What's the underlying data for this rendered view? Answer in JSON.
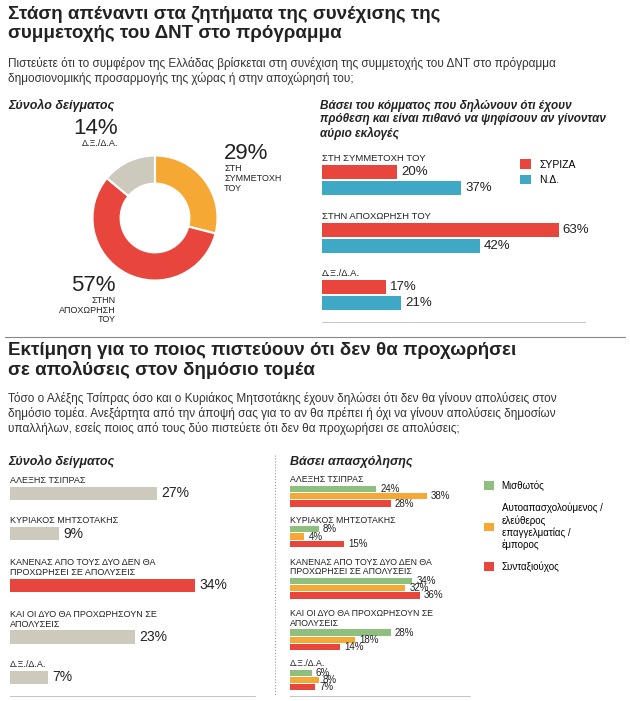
{
  "sections": [
    {
      "title": "Στάση απέναντι στα ζητήματα της συνέχισης της συμμετοχής του ΔΝΤ στο πρόγραμμα",
      "subtitle": "Πιστεύετε ότι το συμφέρον της Ελλάδας βρίσκεται στη συνέχιση της συμμετοχής του ΔΝΤ στο πρόγραμμα δημοσιονομικής προσαρμογής της χώρας ή στην αποχώρησή του;"
    },
    {
      "title": "Εκτίμηση για το ποιος πιστεύουν ότι δεν θα προχωρήσει σε απολύσεις στον δημόσιο τομέα",
      "subtitle": "Τόσο ο Αλέξης Τσίπρας όσο και ο Κυριάκος Μητσοτάκης έχουν δηλώσει ότι δεν θα γίνουν απολύσεις στον δημόσιο τομέα. Ανεξάρτητα από την άποψή σας για το αν θα πρέπει ή όχι να γίνουν απολύσεις δημοσίων υπαλλήλων, εσείς ποιος από τους δύο πιστεύετε ότι δεν θα προχωρήσει σε απολύσεις;"
    }
  ],
  "chart_data": [
    {
      "type": "pie",
      "title": "Σύνολο δείγματος",
      "categories": [
        "ΣΤΗ ΣΥΜΜΕΤΟΧΗ ΤΟΥ",
        "ΣΤΗΝ ΑΠΟΧΩΡΗΣΗ ΤΟΥ",
        "Δ.Ξ./Δ.Α."
      ],
      "values": [
        29,
        57,
        14
      ],
      "value_labels": [
        "29%",
        "57%",
        "14%"
      ],
      "colors": [
        "#f5a834",
        "#e8453c",
        "#cdc9bd"
      ],
      "data_labels": true
    },
    {
      "type": "bar",
      "orientation": "horizontal",
      "title": "Βάσει του κόμματος που δηλώνουν ότι έχουν πρόθεση και είναι πιθανό να ψηφίσουν αν γίνονταν αύριο εκλογές",
      "categories": [
        "ΣΤΗ ΣΥΜΜΕΤΟΧΗ ΤΟΥ",
        "ΣΤΗΝ ΑΠΟΧΩΡΗΣΗ ΤΟΥ",
        "Δ.Ξ./Δ.Α."
      ],
      "series": [
        {
          "name": "ΣΥΡΙΖΑ",
          "color": "#e8453c",
          "values": [
            20,
            63,
            17
          ],
          "value_labels": [
            "20%",
            "63%",
            "17%"
          ]
        },
        {
          "name": "Ν.Δ.",
          "color": "#3fa8c5",
          "values": [
            37,
            42,
            21
          ],
          "value_labels": [
            "37%",
            "42%",
            "21%"
          ]
        }
      ],
      "xlim": [
        0,
        70
      ],
      "tick_labels": false,
      "legend": "upper right",
      "data_labels": true
    },
    {
      "type": "bar",
      "orientation": "horizontal",
      "title": "Σύνολο δείγματος",
      "categories": [
        "ΑΛΕΞΗΣ ΤΣΙΠΡΑΣ",
        "ΚΥΡΙΑΚΟΣ ΜΗΤΣΟΤΑΚΗΣ",
        "ΚΑΝΕΝΑΣ ΑΠΟ ΤΟΥΣ ΔΥΟ ΔΕΝ ΘΑ ΠΡΟΧΩΡΗΣΕΙ ΣΕ ΑΠΟΛΥΣΕΙΣ",
        "ΚΑΙ ΟΙ ΔΥΟ ΘΑ ΠΡΟΧΩΡΗΣΟΥΝ ΣΕ ΑΠΟΛΥΣΕΙΣ",
        "Δ.Ξ./Δ.Α."
      ],
      "values": [
        27,
        9,
        34,
        23,
        7
      ],
      "value_labels": [
        "27%",
        "9%",
        "34%",
        "23%",
        "7%"
      ],
      "colors": [
        "#cdc9bd",
        "#cdc9bd",
        "#e8453c",
        "#cdc9bd",
        "#cdc9bd"
      ],
      "xlim": [
        0,
        45
      ],
      "tick_labels": false,
      "data_labels": true
    },
    {
      "type": "bar",
      "orientation": "horizontal",
      "title": "Βάσει απασχόλησης",
      "categories": [
        "ΑΛΕΞΗΣ ΤΣΙΠΡΑΣ",
        "ΚΥΡΙΑΚΟΣ ΜΗΤΣΟΤΑΚΗΣ",
        "ΚΑΝΕΝΑΣ ΑΠΟ ΤΟΥΣ ΔΥΟ ΔΕΝ ΘΑ ΠΡΟΧΩΡΗΣΕΙ ΣΕ ΑΠΟΛΥΣΕΙΣ",
        "ΚΑΙ ΟΙ ΔΥΟ ΘΑ ΠΡΟΧΩΡΗΣΟΥΝ ΣΕ ΑΠΟΛΥΣΕΙΣ",
        "Δ.Ξ./Δ.Α."
      ],
      "series": [
        {
          "name": "Μισθωτός",
          "color": "#8fbf7f",
          "values": [
            24,
            8,
            34,
            28,
            6
          ],
          "value_labels": [
            "24%",
            "8%",
            "34%",
            "28%",
            "6%"
          ]
        },
        {
          "name": "Αυτοαπασχολούμενος / ελεύθερος επαγγελματίας / έμπορος",
          "color": "#f5a834",
          "values": [
            38,
            4,
            32,
            18,
            8
          ],
          "value_labels": [
            "38%",
            "4%",
            "32%",
            "18%",
            "8%"
          ]
        },
        {
          "name": "Συνταξιούχος",
          "color": "#e8453c",
          "values": [
            28,
            15,
            36,
            14,
            7
          ],
          "value_labels": [
            "28%",
            "15%",
            "36%",
            "14%",
            "7%"
          ]
        }
      ],
      "xlim": [
        0,
        50
      ],
      "tick_labels": false,
      "legend": "right",
      "data_labels": true
    }
  ]
}
